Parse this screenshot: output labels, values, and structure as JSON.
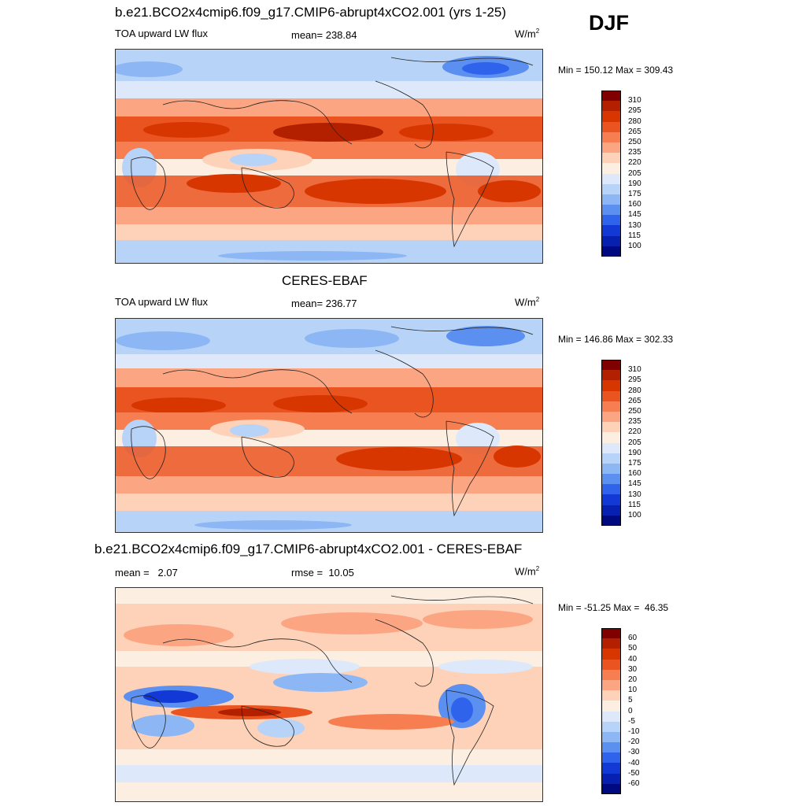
{
  "season": "DJF",
  "panels": [
    {
      "title": "b.e21.BCO2x4cmip6.f09_g17.CMIP6-abrupt4xCO2.001 (yrs 1-25)",
      "left_label": "TOA upward LW flux",
      "center_label": "mean= 238.84",
      "units_base": "W/m",
      "units_exp": "2",
      "minmax": "Min = 150.12 Max = 309.43",
      "colorbar": "abs"
    },
    {
      "title": "CERES-EBAF",
      "left_label": "TOA upward LW flux",
      "center_label": "mean= 236.77",
      "units_base": "W/m",
      "units_exp": "2",
      "minmax": "Min = 146.86 Max = 302.33",
      "colorbar": "abs"
    },
    {
      "title": "b.e21.BCO2x4cmip6.f09_g17.CMIP6-abrupt4xCO2.001 - CERES-EBAF",
      "left_label": "mean =   2.07",
      "center_label": "rmse =  10.05",
      "units_base": "W/m",
      "units_exp": "2",
      "minmax": "Min = -51.25 Max =  46.35",
      "colorbar": "diff"
    }
  ],
  "colorbars": {
    "abs": {
      "labels": [
        "310",
        "295",
        "280",
        "265",
        "250",
        "235",
        "220",
        "205",
        "190",
        "175",
        "160",
        "145",
        "130",
        "115",
        "100"
      ],
      "colors": [
        "#800000",
        "#b22000",
        "#d73600",
        "#ea5420",
        "#f67e50",
        "#fca582",
        "#fdd2b8",
        "#fdeee2",
        "#dde9fa",
        "#b8d3f8",
        "#8cb6f4",
        "#5b8ff0",
        "#2f63ec",
        "#1238d6",
        "#0820b0",
        "#000a80"
      ]
    },
    "diff": {
      "labels": [
        "60",
        "50",
        "40",
        "30",
        "20",
        "10",
        "5",
        "0",
        "-5",
        "-10",
        "-20",
        "-30",
        "-40",
        "-50",
        "-60"
      ],
      "colors": [
        "#800000",
        "#b22000",
        "#d73600",
        "#ea5420",
        "#f67e50",
        "#fca582",
        "#fdd2b8",
        "#fdeee2",
        "#dde9fa",
        "#b8d3f8",
        "#8cb6f4",
        "#5b8ff0",
        "#2f63ec",
        "#1238d6",
        "#0820b0",
        "#000a80"
      ]
    }
  },
  "chart_data": [
    {
      "type": "heatmap",
      "title": "b.e21.BCO2x4cmip6.f09_g17.CMIP6-abrupt4xCO2.001 (yrs 1-25)",
      "variable": "TOA upward LW flux",
      "units": "W/m2",
      "season": "DJF",
      "mean": 238.84,
      "min": 150.12,
      "max": 309.43,
      "levels": [
        100,
        115,
        130,
        145,
        160,
        175,
        190,
        205,
        220,
        235,
        250,
        265,
        280,
        295,
        310
      ]
    },
    {
      "type": "heatmap",
      "title": "CERES-EBAF",
      "variable": "TOA upward LW flux",
      "units": "W/m2",
      "season": "DJF",
      "mean": 236.77,
      "min": 146.86,
      "max": 302.33,
      "levels": [
        100,
        115,
        130,
        145,
        160,
        175,
        190,
        205,
        220,
        235,
        250,
        265,
        280,
        295,
        310
      ]
    },
    {
      "type": "heatmap",
      "title": "b.e21.BCO2x4cmip6.f09_g17.CMIP6-abrupt4xCO2.001 - CERES-EBAF",
      "variable": "TOA upward LW flux difference",
      "units": "W/m2",
      "season": "DJF",
      "mean": 2.07,
      "rmse": 10.05,
      "min": -51.25,
      "max": 46.35,
      "levels": [
        -60,
        -50,
        -40,
        -30,
        -20,
        -10,
        -5,
        0,
        5,
        10,
        20,
        30,
        40,
        50,
        60
      ]
    }
  ]
}
